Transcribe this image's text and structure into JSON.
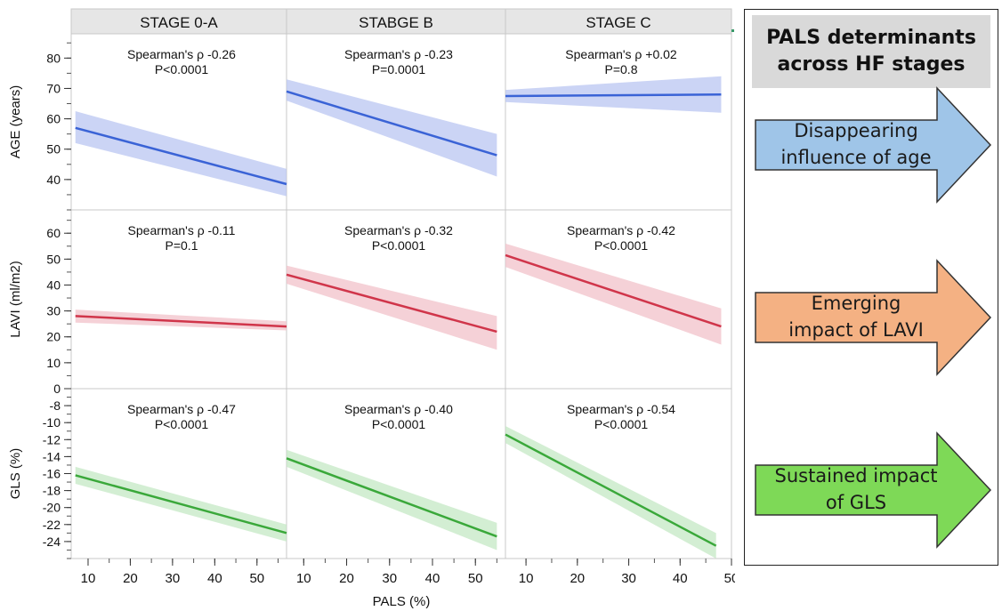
{
  "chart_data": {
    "type": "line",
    "xlabel": "PALS (%)",
    "x_ticks": [
      10,
      20,
      30,
      40,
      50
    ],
    "columns": [
      {
        "title": "STAGE 0-A",
        "xlim": [
          6,
          57
        ]
      },
      {
        "title": "STABGE B",
        "xlim": [
          6,
          57
        ]
      },
      {
        "title": "STAGE C",
        "xlim": [
          6,
          50
        ]
      }
    ],
    "rows": [
      {
        "ylabel": "AGE (years)",
        "ylim": [
          30,
          88
        ],
        "ticks": [
          40,
          50,
          60,
          70,
          80
        ],
        "color": "#3a63d6",
        "band": "#b9c6f2"
      },
      {
        "ylabel": "LAVI (ml/m2)",
        "ylim": [
          0,
          69
        ],
        "ticks": [
          0,
          10,
          20,
          30,
          40,
          50,
          60
        ],
        "color": "#d0354a",
        "band": "#f2c2c9"
      },
      {
        "ylabel": "GLS (%)",
        "ylim": [
          -26,
          -6
        ],
        "ticks": [
          -8,
          -10,
          -12,
          -14,
          -16,
          -18,
          -20,
          -22,
          -24
        ],
        "color": "#3aa83a",
        "band": "#c4e8c4"
      }
    ],
    "panels": [
      {
        "row": 0,
        "col": 0,
        "stat": "Spearman's ρ -0.26",
        "p": "P<0.0001",
        "x": [
          7,
          57
        ],
        "y": [
          57,
          38.5
        ],
        "band_start": [
          52,
          62.5
        ],
        "band_end": [
          34.5,
          43.5
        ]
      },
      {
        "row": 0,
        "col": 1,
        "stat": "Spearman's ρ -0.23",
        "p": "P=0.0001",
        "x": [
          6,
          55
        ],
        "y": [
          69,
          48
        ],
        "band_start": [
          66,
          73
        ],
        "band_end": [
          41,
          55
        ]
      },
      {
        "row": 0,
        "col": 2,
        "stat": "Spearman's ρ +0.02",
        "p": "P=0.8",
        "x": [
          6,
          48
        ],
        "y": [
          67.5,
          68
        ],
        "band_start": [
          65.5,
          69.5
        ],
        "band_end": [
          62,
          74
        ]
      },
      {
        "row": 1,
        "col": 0,
        "stat": "Spearman's ρ -0.11",
        "p": "P=0.1",
        "x": [
          7,
          57
        ],
        "y": [
          28,
          24
        ],
        "band_start": [
          25.5,
          30.5
        ],
        "band_end": [
          22.5,
          26
        ]
      },
      {
        "row": 1,
        "col": 1,
        "stat": "Spearman's ρ  -0.32",
        "p": "P<0.0001",
        "x": [
          6,
          55
        ],
        "y": [
          44,
          22
        ],
        "band_start": [
          40.5,
          47.5
        ],
        "band_end": [
          15,
          28
        ]
      },
      {
        "row": 1,
        "col": 2,
        "stat": "Spearman's ρ -0.42",
        "p": "P<0.0001",
        "x": [
          6,
          48
        ],
        "y": [
          51.5,
          24
        ],
        "band_start": [
          47,
          56
        ],
        "band_end": [
          17,
          31
        ]
      },
      {
        "row": 2,
        "col": 0,
        "stat": "Spearman's ρ  -0.47",
        "p": "P<0.0001",
        "x": [
          7,
          57
        ],
        "y": [
          -16.2,
          -23
        ],
        "band_start": [
          -17.2,
          -15.2
        ],
        "band_end": [
          -24,
          -22
        ]
      },
      {
        "row": 2,
        "col": 1,
        "stat": "Spearman's ρ -0.40",
        "p": "P<0.0001",
        "x": [
          6,
          55
        ],
        "y": [
          -14.2,
          -23.4
        ],
        "band_start": [
          -15.2,
          -13.2
        ],
        "band_end": [
          -25,
          -21.8
        ]
      },
      {
        "row": 2,
        "col": 2,
        "stat": "Spearman's ρ -0.54",
        "p": "P<0.0001",
        "x": [
          6,
          47
        ],
        "y": [
          -11.4,
          -24.5
        ],
        "band_start": [
          -12.4,
          -10.4
        ],
        "band_end": [
          -26,
          -23
        ]
      }
    ]
  },
  "side_panel": {
    "header": "PALS determinants\nacross HF stages",
    "arrows": [
      {
        "label": "Disappearing\ninfluence of age",
        "color": "#9fc5e8"
      },
      {
        "label": "Emerging\nimpact of LAVI",
        "color": "#f4b183"
      },
      {
        "label": "Sustained impact\nof GLS",
        "color": "#7ed957"
      }
    ]
  }
}
